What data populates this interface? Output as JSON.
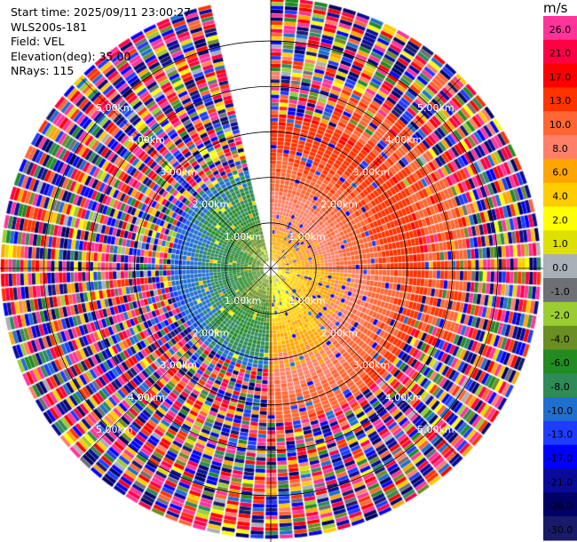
{
  "chart_data": {
    "type": "heatmap",
    "subtype": "ppi-radar",
    "title_lines": {
      "start_time": "Start time: 2025/09/11 23:00:27",
      "instrument": "WLS200s-181",
      "field": "Field: VEL",
      "elevation": "Elevation(deg): 35.00",
      "nrays": "NRays: 115"
    },
    "range_rings_km": [
      1.0,
      2.0,
      3.0,
      4.0,
      5.0
    ],
    "ring_labels": [
      "1.00km",
      "2.00km",
      "3.00km",
      "4.00km",
      "5.00km"
    ],
    "max_range_km": 5.9,
    "n_rays": 115,
    "no_data_sector_deg": [
      346,
      360
    ],
    "regions": [
      {
        "name": "near-field-south-west",
        "azimuth_deg": [
          180,
          346
        ],
        "range_km": [
          0,
          2.2
        ],
        "velocity_ms": [
          -12,
          -2
        ]
      },
      {
        "name": "near-field-north-east",
        "azimuth_deg": [
          0,
          180
        ],
        "range_km": [
          0,
          3.5
        ],
        "velocity_ms": [
          2,
          16
        ]
      },
      {
        "name": "far-field-noise",
        "range_km": [
          2.2,
          5.9
        ],
        "velocity_ms": [
          -30,
          30
        ]
      }
    ],
    "colorbar": {
      "unit": "m/s",
      "ticks": [
        "26.0",
        "21.0",
        "17.0",
        "13.0",
        "10.0",
        "8.0",
        "6.0",
        "4.0",
        "2.0",
        "1.0",
        "0.0",
        "-1.0",
        "-2.0",
        "-4.0",
        "-6.0",
        "-8.0",
        "-10.0",
        "-13.0",
        "-17.0",
        "-21.0",
        "-26.0",
        "-30.0"
      ],
      "colors": [
        "#ff3399",
        "#ff0044",
        "#ff0000",
        "#ff3300",
        "#ff6633",
        "#ff8066",
        "#ffa500",
        "#ffcc00",
        "#ffff00",
        "#dde000",
        "#a8b0b8",
        "#6e7075",
        "#9acd32",
        "#6b8e23",
        "#228b22",
        "#2e8b57",
        "#1f6fcf",
        "#1e3cff",
        "#0000ff",
        "#0a0a9a",
        "#000066",
        "#1a1a6a"
      ]
    }
  }
}
